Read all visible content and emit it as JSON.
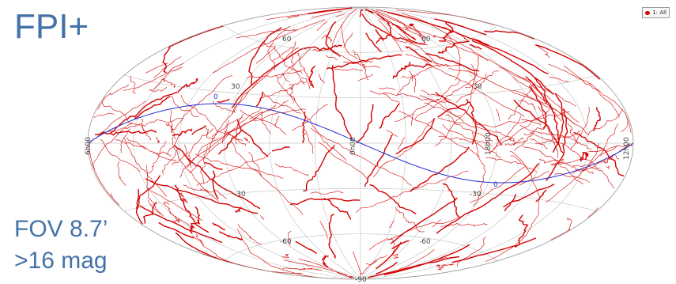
{
  "title": "FPI+",
  "captions": [
    "FOV 8.7’",
    ">16 mag"
  ],
  "legend": {
    "label": "1: All",
    "color": "#d40000"
  },
  "colors": {
    "tracks": "#d40000",
    "ecliptic": "#2030d0",
    "grid": "#c8c8c8",
    "text": "#4472a8"
  },
  "map": {
    "projection": "aitoff",
    "lat_labels": [
      "60",
      "60",
      "30",
      "30",
      "-30",
      "-30",
      "-60",
      "-60",
      "-90"
    ],
    "ra_labels": [
      "6h00",
      "0h00",
      "18h00",
      "12h00"
    ],
    "ecliptic_label": "0"
  },
  "icons": {
    "legend_marker": "red-dot-icon"
  }
}
